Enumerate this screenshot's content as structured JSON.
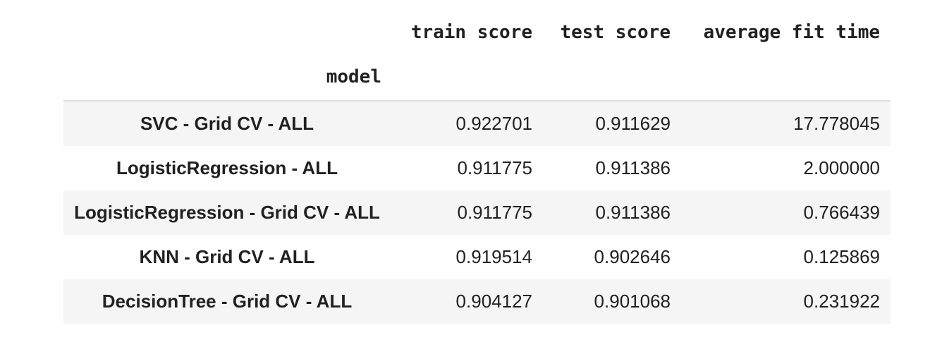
{
  "table": {
    "columns": [
      "train score",
      "test score",
      "average fit time"
    ],
    "index_name": "model",
    "rows": [
      {
        "model": "SVC - Grid CV - ALL",
        "train_score": "0.922701",
        "test_score": "0.911629",
        "average_fit_time": "17.778045"
      },
      {
        "model": "LogisticRegression - ALL",
        "train_score": "0.911775",
        "test_score": "0.911386",
        "average_fit_time": "2.000000"
      },
      {
        "model": "LogisticRegression - Grid CV - ALL",
        "train_score": "0.911775",
        "test_score": "0.911386",
        "average_fit_time": "0.766439"
      },
      {
        "model": "KNN - Grid CV - ALL",
        "train_score": "0.919514",
        "test_score": "0.902646",
        "average_fit_time": "0.125869"
      },
      {
        "model": "DecisionTree - Grid CV - ALL",
        "train_score": "0.904127",
        "test_score": "0.901068",
        "average_fit_time": "0.231922"
      }
    ]
  }
}
